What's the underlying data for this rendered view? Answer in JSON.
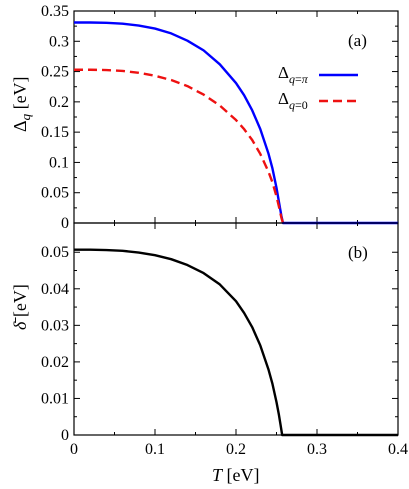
{
  "chart_data": [
    {
      "panel": "(a)",
      "type": "line",
      "ylabel": "Δq [eV]",
      "xlim": [
        0,
        0.4
      ],
      "ylim": [
        0,
        0.35
      ],
      "xticks": [
        0,
        0.1,
        0.2,
        0.3,
        0.4
      ],
      "yticks": [
        0,
        0.05,
        0.1,
        0.15,
        0.2,
        0.25,
        0.3,
        0.35
      ],
      "ytick_labels": [
        "0",
        "0.05",
        "0.1",
        "0.15",
        "0.2",
        "0.25",
        "0.3",
        "0.35"
      ],
      "legend_position": "right",
      "series": [
        {
          "name": "Δq=π",
          "color": "#0000ff",
          "dash": "solid",
          "x": [
            0,
            0.02,
            0.04,
            0.06,
            0.08,
            0.1,
            0.12,
            0.14,
            0.16,
            0.18,
            0.2,
            0.21,
            0.22,
            0.23,
            0.24,
            0.245,
            0.25,
            0.253,
            0.256,
            0.258,
            0.26,
            0.3,
            0.35,
            0.4
          ],
          "y": [
            0.331,
            0.331,
            0.3305,
            0.329,
            0.326,
            0.321,
            0.313,
            0.301,
            0.285,
            0.262,
            0.231,
            0.211,
            0.186,
            0.155,
            0.115,
            0.09,
            0.058,
            0.035,
            0.012,
            0,
            0,
            0,
            0,
            0
          ]
        },
        {
          "name": "Δq=0",
          "color": "#ee1111",
          "dash": "dashed",
          "x": [
            0,
            0.02,
            0.04,
            0.06,
            0.08,
            0.1,
            0.12,
            0.14,
            0.16,
            0.18,
            0.2,
            0.21,
            0.22,
            0.23,
            0.24,
            0.245,
            0.25,
            0.253,
            0.256,
            0.258
          ],
          "y": [
            0.253,
            0.253,
            0.2525,
            0.251,
            0.248,
            0.243,
            0.236,
            0.226,
            0.212,
            0.194,
            0.17,
            0.155,
            0.137,
            0.114,
            0.085,
            0.067,
            0.044,
            0.027,
            0.009,
            0
          ]
        }
      ]
    },
    {
      "panel": "(b)",
      "type": "line",
      "xlabel": "T [eV]",
      "ylabel": "δ̄ [eV]",
      "xlim": [
        0,
        0.4
      ],
      "ylim": [
        0,
        0.058
      ],
      "xticks": [
        0,
        0.1,
        0.2,
        0.3,
        0.4
      ],
      "xtick_labels": [
        "0",
        "0.1",
        "0.2",
        "0.3",
        "0.4"
      ],
      "yticks": [
        0,
        0.01,
        0.02,
        0.03,
        0.04,
        0.05
      ],
      "ytick_labels": [
        "0",
        "0.01",
        "0.02",
        "0.03",
        "0.04",
        "0.05"
      ],
      "series": [
        {
          "color": "#000000",
          "dash": "solid",
          "x": [
            0,
            0.02,
            0.04,
            0.06,
            0.08,
            0.1,
            0.12,
            0.14,
            0.16,
            0.18,
            0.2,
            0.21,
            0.22,
            0.23,
            0.24,
            0.245,
            0.25,
            0.253,
            0.255,
            0.257,
            0.3,
            0.35,
            0.4
          ],
          "y": [
            0.0507,
            0.0507,
            0.0506,
            0.0504,
            0.0499,
            0.0492,
            0.0481,
            0.0465,
            0.0443,
            0.0412,
            0.0366,
            0.0334,
            0.0295,
            0.0245,
            0.018,
            0.014,
            0.009,
            0.0055,
            0.0028,
            0,
            0,
            0,
            0
          ]
        }
      ]
    }
  ]
}
